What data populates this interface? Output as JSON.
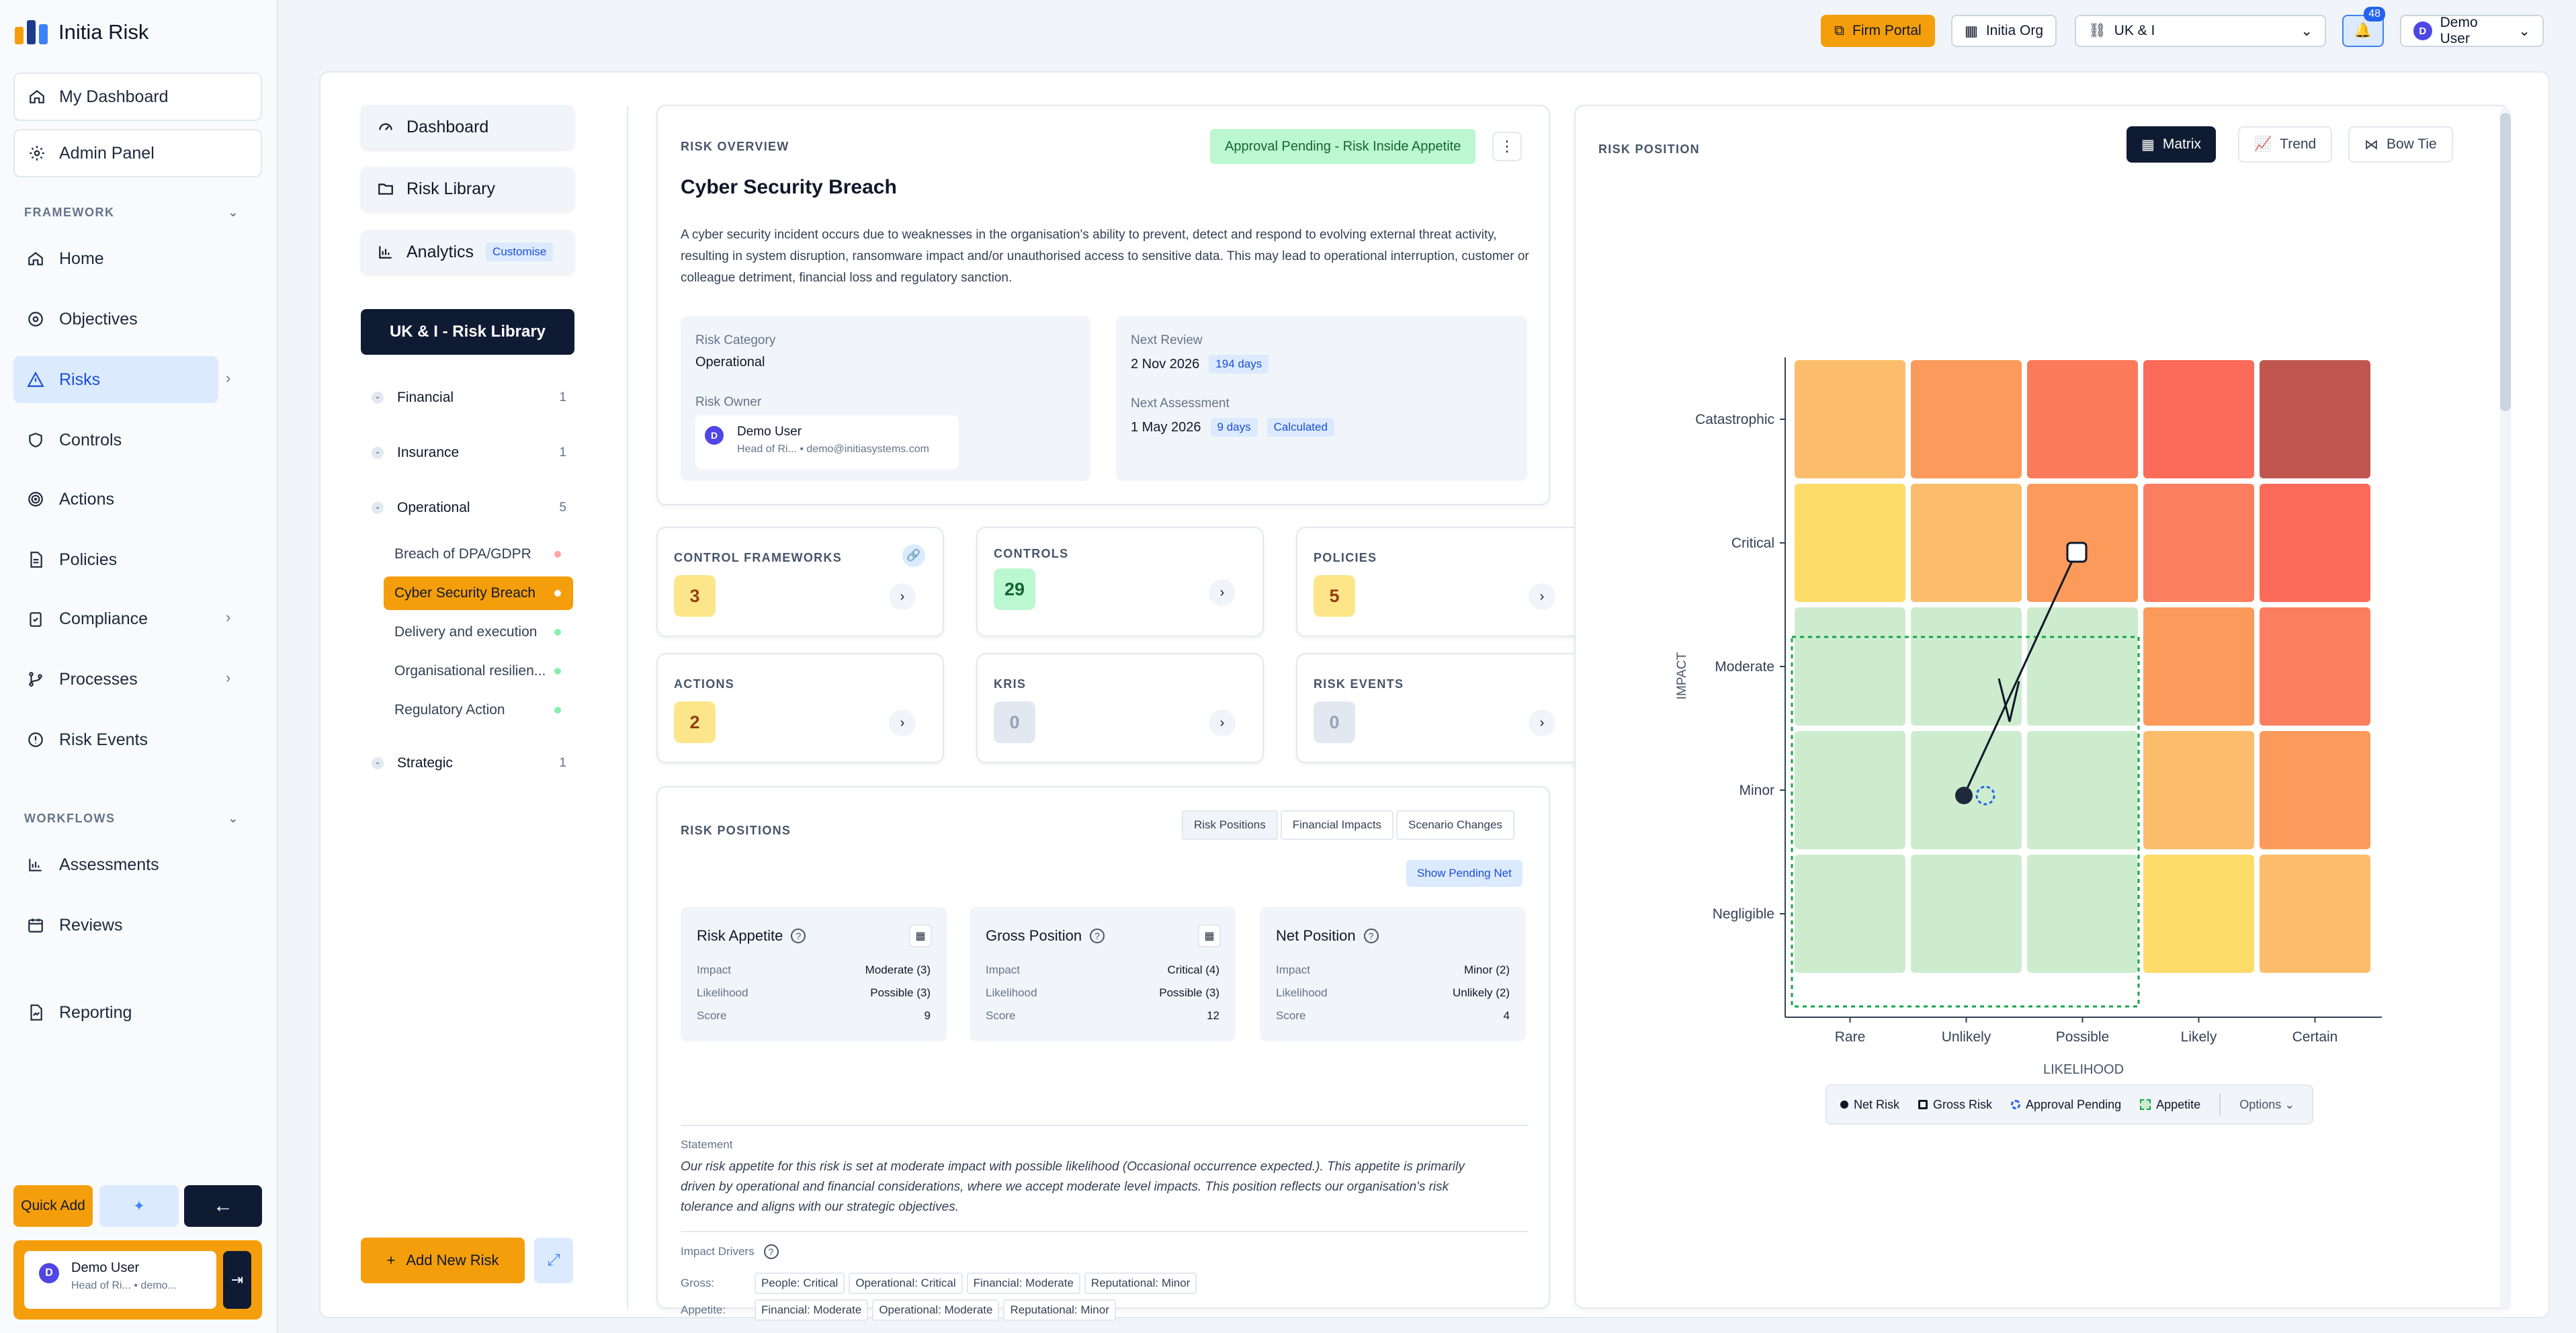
{
  "app": {
    "name": "Initia Risk"
  },
  "sidebar": {
    "top": [
      {
        "label": "My Dashboard",
        "icon": "home-icon"
      },
      {
        "label": "Admin Panel",
        "icon": "gear-icon"
      }
    ],
    "framework_label": "FRAMEWORK",
    "framework": [
      {
        "label": "Home"
      },
      {
        "label": "Objectives"
      },
      {
        "label": "Risks"
      },
      {
        "label": "Controls"
      },
      {
        "label": "Actions"
      },
      {
        "label": "Policies"
      },
      {
        "label": "Compliance"
      },
      {
        "label": "Processes"
      },
      {
        "label": "Risk Events"
      }
    ],
    "workflows_label": "WORKFLOWS",
    "workflows": [
      {
        "label": "Assessments"
      },
      {
        "label": "Reviews"
      }
    ],
    "reporting": "Reporting",
    "quick_add": "Quick Add",
    "user": {
      "initial": "D",
      "name": "Demo User",
      "role": "Head of Ri... • demo..."
    }
  },
  "topbar": {
    "firm_portal": "Firm Portal",
    "org": "Initia Org",
    "region": "UK & I",
    "notifications": "48",
    "user_initial": "D",
    "user": "Demo User"
  },
  "left_panel": {
    "dashboard": "Dashboard",
    "risk_library": "Risk Library",
    "analytics": "Analytics",
    "customise": "Customise",
    "library_title": "UK & I - Risk Library",
    "tree": [
      {
        "label": "Financial",
        "count": "1"
      },
      {
        "label": "Insurance",
        "count": "1"
      },
      {
        "label": "Operational",
        "count": "5"
      },
      {
        "label": "Strategic",
        "count": "1"
      }
    ],
    "leaves": [
      {
        "label": "Breach of DPA/GDPR"
      },
      {
        "label": "Cyber Security Breach"
      },
      {
        "label": "Delivery and execution"
      },
      {
        "label": "Organisational resilien..."
      },
      {
        "label": "Regulatory Action"
      }
    ],
    "add_new": "Add New Risk"
  },
  "overview": {
    "section": "RISK OVERVIEW",
    "status": "Approval Pending - Risk Inside Appetite",
    "title": "Cyber Security Breach",
    "description": "A cyber security incident occurs due to weaknesses in the organisation's ability to prevent, detect and respond to evolving external threat activity, resulting in system disruption, ransomware impact and/or unauthorised access to sensitive data. This may lead to operational interruption, customer or colleague detriment, financial loss and regulatory sanction.",
    "category_label": "Risk Category",
    "category": "Operational",
    "owner_label": "Risk Owner",
    "owner": {
      "initial": "D",
      "name": "Demo User",
      "detail": "Head of Ri... • demo@initiasystems.com"
    },
    "next_review_label": "Next Review",
    "next_review": "2 Nov 2026",
    "next_review_days": "194 days",
    "next_assessment_label": "Next Assessment",
    "next_assessment": "1 May 2026",
    "next_assessment_days": "9 days",
    "calculated": "Calculated"
  },
  "stats": [
    {
      "label": "CONTROL FRAMEWORKS",
      "value": "3"
    },
    {
      "label": "CONTROLS",
      "value": "29"
    },
    {
      "label": "POLICIES",
      "value": "5"
    },
    {
      "label": "ACTIONS",
      "value": "2"
    },
    {
      "label": "KRIS",
      "value": "0"
    },
    {
      "label": "RISK EVENTS",
      "value": "0"
    }
  ],
  "positions": {
    "section": "RISK POSITIONS",
    "tabs": [
      "Risk Positions",
      "Financial Impacts",
      "Scenario Changes"
    ],
    "show_pending": "Show Pending Net",
    "cards": [
      {
        "title": "Risk Appetite",
        "impact": "Moderate (3)",
        "likelihood": "Possible (3)",
        "score": "9"
      },
      {
        "title": "Gross Position",
        "impact": "Critical (4)",
        "likelihood": "Possible (3)",
        "score": "12"
      },
      {
        "title": "Net Position",
        "impact": "Minor (2)",
        "likelihood": "Unlikely (2)",
        "score": "4"
      }
    ],
    "impact_label": "Impact",
    "likelihood_label": "Likelihood",
    "score_label": "Score",
    "statement_label": "Statement",
    "statement": "Our risk appetite for this risk is set at moderate impact with possible likelihood (Occasional occurrence expected.). This appetite is primarily driven by operational and financial considerations, where we accept moderate level impacts. This position reflects our organisation's risk tolerance and aligns with our strategic objectives.",
    "drivers_label": "Impact Drivers",
    "gross_label": "Gross:",
    "appetite_label": "Appetite:",
    "gross_chips": [
      "People: Critical",
      "Operational: Critical",
      "Financial: Moderate",
      "Reputational: Minor"
    ],
    "appetite_chips": [
      "Financial: Moderate",
      "Operational: Moderate",
      "Reputational: Minor"
    ]
  },
  "matrix": {
    "section": "RISK POSITION",
    "views": [
      "Matrix",
      "Trend",
      "Bow Tie"
    ],
    "y_axis": "IMPACT",
    "x_axis": "LIKELIHOOD",
    "impact_levels": [
      "Catastrophic",
      "Critical",
      "Moderate",
      "Minor",
      "Negligible"
    ],
    "likelihood_levels": [
      "Rare",
      "Unlikely",
      "Possible",
      "Likely",
      "Certain"
    ],
    "legend": [
      "Net Risk",
      "Gross Risk",
      "Approval Pending",
      "Appetite"
    ],
    "options": "Options",
    "colors": [
      [
        "#fbbd6b",
        "#fb9a5a",
        "#fb7a5a",
        "#fc6a5a",
        "#c0564f"
      ],
      [
        "#fddc6a",
        "#fbbd6b",
        "#fb9a5a",
        "#fc7e60",
        "#fc6a5a"
      ],
      [
        "#cdeccd",
        "#cdeccd",
        "#cdeccd",
        "#fb9a5a",
        "#fc7e60"
      ],
      [
        "#cdeccd",
        "#cdeccd",
        "#cdeccd",
        "#fbbd6b",
        "#fb9a5a"
      ],
      [
        "#cdeccd",
        "#cdeccd",
        "#cdeccd",
        "#fddc6a",
        "#fbbd6b"
      ]
    ]
  }
}
